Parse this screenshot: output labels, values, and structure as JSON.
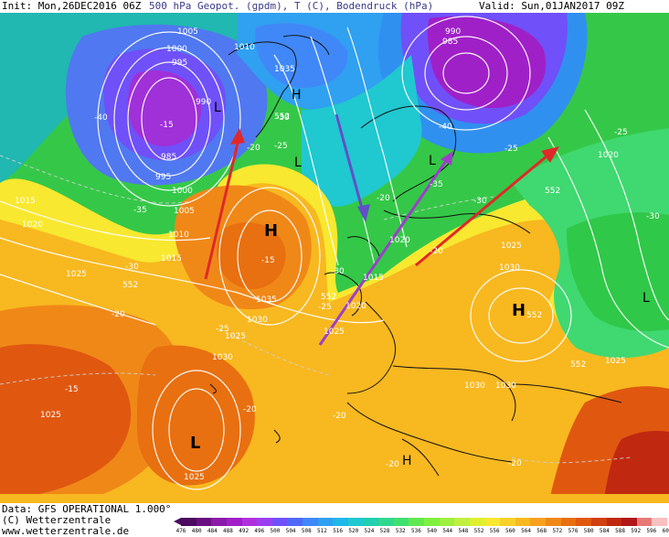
{
  "header": {
    "init": "Init: Mon,26DEC2016 06Z",
    "title": "500 hPa Geopot. (gpdm), T (C), Bodendruck (hPa)",
    "valid": "Valid: Sun,01JAN2017 09Z"
  },
  "footer": {
    "data_source": "Data: GFS OPERATIONAL 1.000°",
    "copyright": "(C) Wetterzentrale",
    "url": "www.wetterzentrale.de"
  },
  "scale": {
    "labels": [
      "476",
      "480",
      "484",
      "488",
      "492",
      "496",
      "500",
      "504",
      "508",
      "512",
      "516",
      "520",
      "524",
      "528",
      "532",
      "536",
      "540",
      "544",
      "548",
      "552",
      "556",
      "560",
      "564",
      "568",
      "572",
      "576",
      "580",
      "584",
      "588",
      "592",
      "596",
      "600"
    ],
    "colors": [
      "#4a0a5e",
      "#6a0f82",
      "#8a1aa8",
      "#a020c8",
      "#b030e0",
      "#9a40f0",
      "#7050f8",
      "#5068f8",
      "#4088f8",
      "#30a0f0",
      "#20b8e8",
      "#20c8d0",
      "#20d0b0",
      "#30d890",
      "#40e070",
      "#60e850",
      "#80f040",
      "#a0f040",
      "#c0f040",
      "#e0f030",
      "#f8e830",
      "#f8d028",
      "#f8b820",
      "#f8a020",
      "#f08818",
      "#e87010",
      "#e05810",
      "#d04010",
      "#c02810",
      "#b01818",
      "#e87878",
      "#f8c0c0"
    ]
  },
  "labels": {
    "high_pressure": "H",
    "low_pressure": "L"
  },
  "isobars": [
    "1005",
    "1000",
    "995",
    "990",
    "985",
    "1010",
    "1015",
    "1020",
    "1025",
    "1030",
    "1035",
    "990",
    "985",
    "995",
    "1000",
    "1005",
    "1010",
    "1015",
    "1020",
    "1025",
    "1030",
    "1035",
    "1025",
    "1030",
    "1020",
    "1025",
    "1015",
    "1025",
    "1020",
    "1025",
    "1030",
    "1030",
    "1025"
  ],
  "isohypses": [
    "552",
    "552",
    "552",
    "552",
    "552",
    "552"
  ],
  "temperatures": [
    "-40",
    "-15",
    "-20",
    "-25",
    "-30",
    "-35",
    "-30",
    "-25",
    "-20",
    "-15",
    "-20",
    "-15",
    "-25",
    "-20",
    "-20",
    "-20",
    "-40",
    "-35",
    "-30",
    "-25",
    "-25",
    "-30",
    "-30",
    "-20",
    "-20"
  ]
}
